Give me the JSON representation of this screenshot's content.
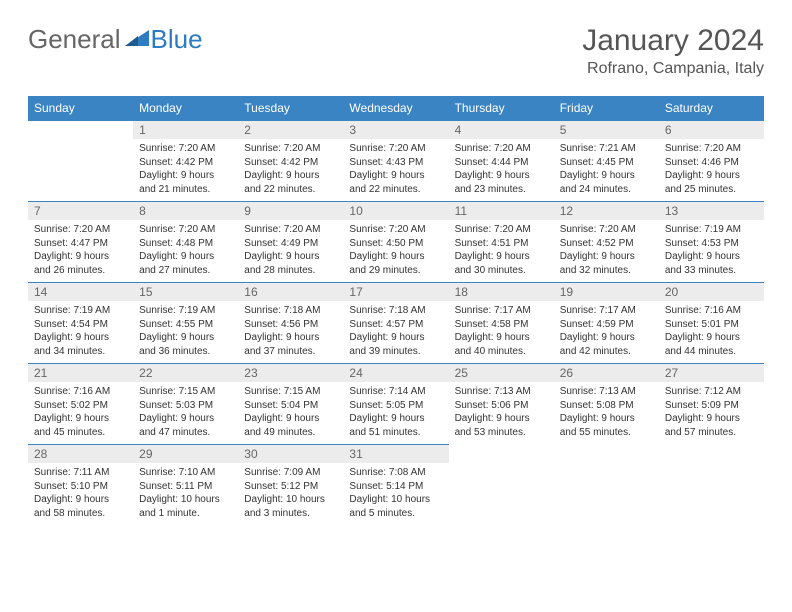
{
  "logo": {
    "word1": "General",
    "word2": "Blue",
    "accent": "#2d7bc0"
  },
  "title": "January 2024",
  "location": "Rofrano, Campania, Italy",
  "colors": {
    "header_bg": "#3b84c4",
    "header_text": "#ffffff",
    "daynum_bg": "#ececec",
    "daynum_text": "#666666",
    "border": "#3b84c4",
    "body_text": "#333333"
  },
  "dayNames": [
    "Sunday",
    "Monday",
    "Tuesday",
    "Wednesday",
    "Thursday",
    "Friday",
    "Saturday"
  ],
  "weeks": [
    [
      null,
      {
        "n": "1",
        "sunrise": "7:20 AM",
        "sunset": "4:42 PM",
        "daylight": "9 hours and 21 minutes."
      },
      {
        "n": "2",
        "sunrise": "7:20 AM",
        "sunset": "4:42 PM",
        "daylight": "9 hours and 22 minutes."
      },
      {
        "n": "3",
        "sunrise": "7:20 AM",
        "sunset": "4:43 PM",
        "daylight": "9 hours and 22 minutes."
      },
      {
        "n": "4",
        "sunrise": "7:20 AM",
        "sunset": "4:44 PM",
        "daylight": "9 hours and 23 minutes."
      },
      {
        "n": "5",
        "sunrise": "7:21 AM",
        "sunset": "4:45 PM",
        "daylight": "9 hours and 24 minutes."
      },
      {
        "n": "6",
        "sunrise": "7:20 AM",
        "sunset": "4:46 PM",
        "daylight": "9 hours and 25 minutes."
      }
    ],
    [
      {
        "n": "7",
        "sunrise": "7:20 AM",
        "sunset": "4:47 PM",
        "daylight": "9 hours and 26 minutes."
      },
      {
        "n": "8",
        "sunrise": "7:20 AM",
        "sunset": "4:48 PM",
        "daylight": "9 hours and 27 minutes."
      },
      {
        "n": "9",
        "sunrise": "7:20 AM",
        "sunset": "4:49 PM",
        "daylight": "9 hours and 28 minutes."
      },
      {
        "n": "10",
        "sunrise": "7:20 AM",
        "sunset": "4:50 PM",
        "daylight": "9 hours and 29 minutes."
      },
      {
        "n": "11",
        "sunrise": "7:20 AM",
        "sunset": "4:51 PM",
        "daylight": "9 hours and 30 minutes."
      },
      {
        "n": "12",
        "sunrise": "7:20 AM",
        "sunset": "4:52 PM",
        "daylight": "9 hours and 32 minutes."
      },
      {
        "n": "13",
        "sunrise": "7:19 AM",
        "sunset": "4:53 PM",
        "daylight": "9 hours and 33 minutes."
      }
    ],
    [
      {
        "n": "14",
        "sunrise": "7:19 AM",
        "sunset": "4:54 PM",
        "daylight": "9 hours and 34 minutes."
      },
      {
        "n": "15",
        "sunrise": "7:19 AM",
        "sunset": "4:55 PM",
        "daylight": "9 hours and 36 minutes."
      },
      {
        "n": "16",
        "sunrise": "7:18 AM",
        "sunset": "4:56 PM",
        "daylight": "9 hours and 37 minutes."
      },
      {
        "n": "17",
        "sunrise": "7:18 AM",
        "sunset": "4:57 PM",
        "daylight": "9 hours and 39 minutes."
      },
      {
        "n": "18",
        "sunrise": "7:17 AM",
        "sunset": "4:58 PM",
        "daylight": "9 hours and 40 minutes."
      },
      {
        "n": "19",
        "sunrise": "7:17 AM",
        "sunset": "4:59 PM",
        "daylight": "9 hours and 42 minutes."
      },
      {
        "n": "20",
        "sunrise": "7:16 AM",
        "sunset": "5:01 PM",
        "daylight": "9 hours and 44 minutes."
      }
    ],
    [
      {
        "n": "21",
        "sunrise": "7:16 AM",
        "sunset": "5:02 PM",
        "daylight": "9 hours and 45 minutes."
      },
      {
        "n": "22",
        "sunrise": "7:15 AM",
        "sunset": "5:03 PM",
        "daylight": "9 hours and 47 minutes."
      },
      {
        "n": "23",
        "sunrise": "7:15 AM",
        "sunset": "5:04 PM",
        "daylight": "9 hours and 49 minutes."
      },
      {
        "n": "24",
        "sunrise": "7:14 AM",
        "sunset": "5:05 PM",
        "daylight": "9 hours and 51 minutes."
      },
      {
        "n": "25",
        "sunrise": "7:13 AM",
        "sunset": "5:06 PM",
        "daylight": "9 hours and 53 minutes."
      },
      {
        "n": "26",
        "sunrise": "7:13 AM",
        "sunset": "5:08 PM",
        "daylight": "9 hours and 55 minutes."
      },
      {
        "n": "27",
        "sunrise": "7:12 AM",
        "sunset": "5:09 PM",
        "daylight": "9 hours and 57 minutes."
      }
    ],
    [
      {
        "n": "28",
        "sunrise": "7:11 AM",
        "sunset": "5:10 PM",
        "daylight": "9 hours and 58 minutes."
      },
      {
        "n": "29",
        "sunrise": "7:10 AM",
        "sunset": "5:11 PM",
        "daylight": "10 hours and 1 minute."
      },
      {
        "n": "30",
        "sunrise": "7:09 AM",
        "sunset": "5:12 PM",
        "daylight": "10 hours and 3 minutes."
      },
      {
        "n": "31",
        "sunrise": "7:08 AM",
        "sunset": "5:14 PM",
        "daylight": "10 hours and 5 minutes."
      },
      null,
      null,
      null
    ]
  ]
}
